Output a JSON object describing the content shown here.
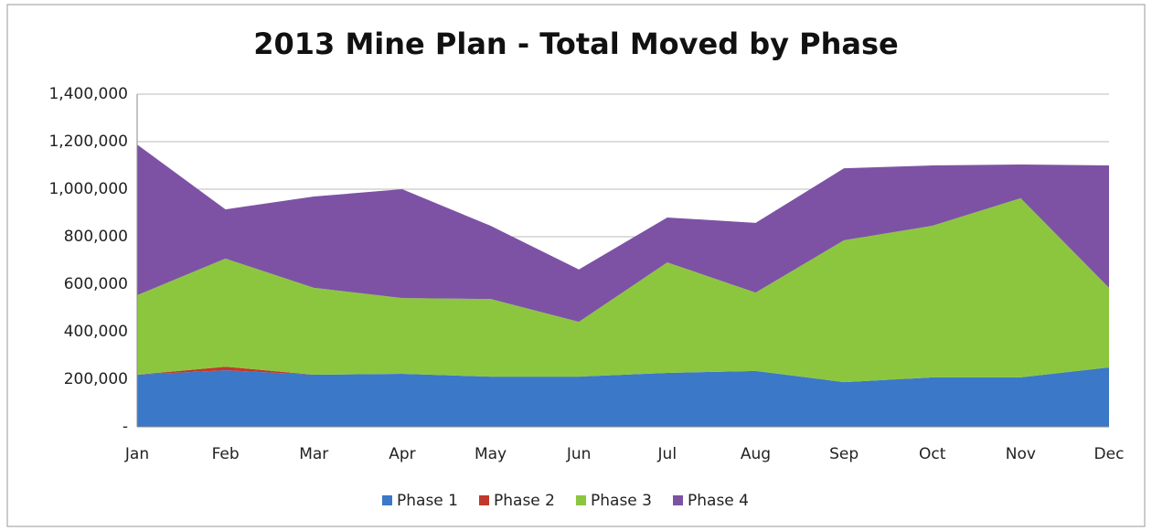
{
  "chart_data": {
    "type": "stacked_area",
    "title": "2013 Mine Plan - Total Moved by Phase",
    "categories": [
      "Jan",
      "Feb",
      "Mar",
      "Apr",
      "May",
      "Jun",
      "Jul",
      "Aug",
      "Sep",
      "Oct",
      "Nov",
      "Dec"
    ],
    "series": [
      {
        "name": "Phase 1",
        "color": "#3b78c8",
        "values": [
          219000,
          238000,
          219000,
          223000,
          211000,
          211000,
          227000,
          235000,
          188000,
          208000,
          208000,
          250000
        ]
      },
      {
        "name": "Phase 2",
        "color": "#c0392b",
        "values": [
          0,
          15000,
          0,
          0,
          0,
          0,
          0,
          0,
          0,
          0,
          0,
          0
        ]
      },
      {
        "name": "Phase 3",
        "color": "#8cc63f",
        "values": [
          335000,
          455000,
          366000,
          319000,
          327000,
          231000,
          465000,
          330000,
          597000,
          638000,
          754000,
          335000
        ]
      },
      {
        "name": "Phase 4",
        "color": "#7d52a5",
        "values": [
          634000,
          207000,
          384000,
          458000,
          308000,
          220000,
          189000,
          293000,
          303000,
          254000,
          142000,
          515000
        ]
      }
    ],
    "ylim": [
      0,
      1400000
    ],
    "yticks": [
      {
        "value": 0,
        "label": "-"
      },
      {
        "value": 200000,
        "label": "200,000"
      },
      {
        "value": 400000,
        "label": "400,000"
      },
      {
        "value": 600000,
        "label": "600,000"
      },
      {
        "value": 800000,
        "label": "800,000"
      },
      {
        "value": 1000000,
        "label": "1,000,000"
      },
      {
        "value": 1200000,
        "label": "1,200,000"
      },
      {
        "value": 1400000,
        "label": "1,400,000"
      }
    ],
    "grid": true,
    "legend": "bottom"
  }
}
